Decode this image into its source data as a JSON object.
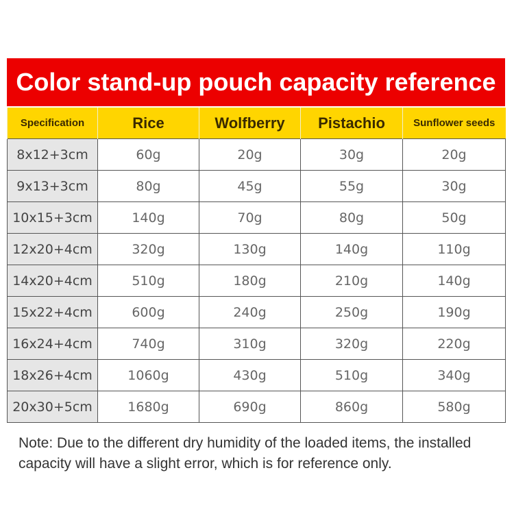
{
  "title": "Color stand-up pouch capacity reference",
  "colors": {
    "title_bg": "#ec0000",
    "header_bg": "#ffd500",
    "spec_bg": "#e6e6e6"
  },
  "table": {
    "headers": [
      "Specification",
      "Rice",
      "Wolfberry",
      "Pistachio",
      "Sunflower seeds"
    ],
    "rows": [
      [
        "8x12+3cm",
        "60g",
        "20g",
        "30g",
        "20g"
      ],
      [
        "9x13+3cm",
        "80g",
        "45g",
        "55g",
        "30g"
      ],
      [
        "10x15+3cm",
        "140g",
        "70g",
        "80g",
        "50g"
      ],
      [
        "12x20+4cm",
        "320g",
        "130g",
        "140g",
        "110g"
      ],
      [
        "14x20+4cm",
        "510g",
        "180g",
        "210g",
        "140g"
      ],
      [
        "15x22+4cm",
        "600g",
        "240g",
        "250g",
        "190g"
      ],
      [
        "16x24+4cm",
        "740g",
        "310g",
        "320g",
        "220g"
      ],
      [
        "18x26+4cm",
        "1060g",
        "430g",
        "510g",
        "340g"
      ],
      [
        "20x30+5cm",
        "1680g",
        "690g",
        "860g",
        "580g"
      ]
    ]
  },
  "note": "Note: Due to the different dry humidity of the loaded items, the installed capacity will have a slight error, which is for reference only."
}
